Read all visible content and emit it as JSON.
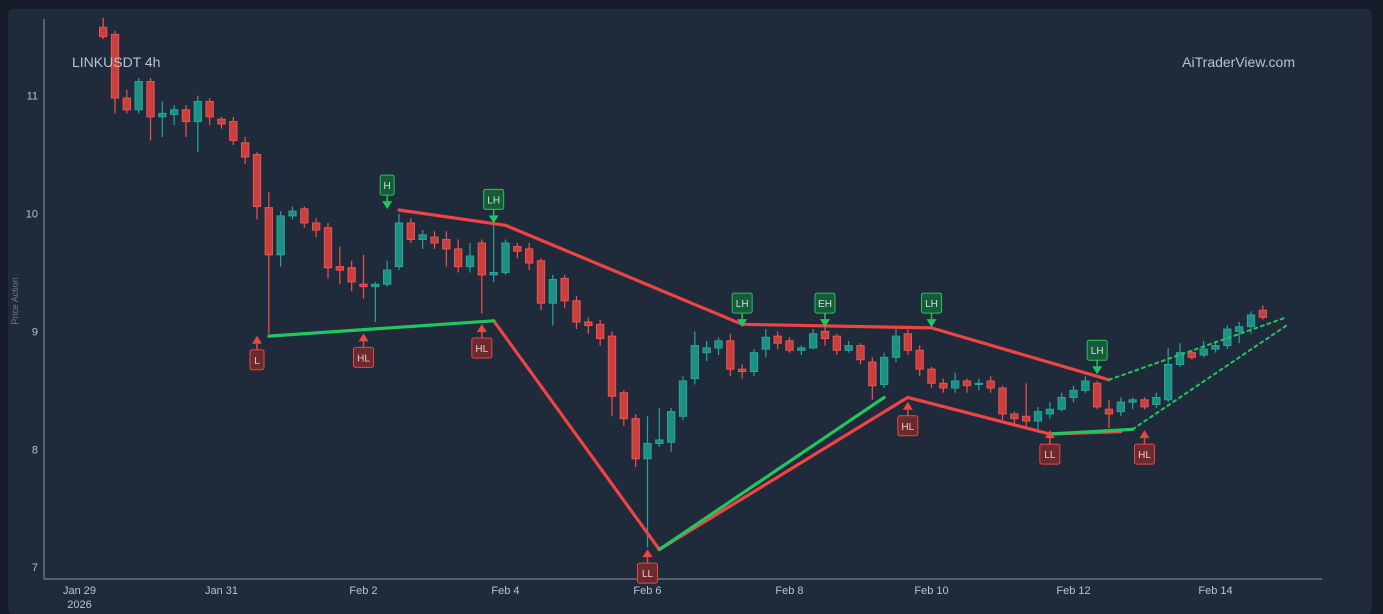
{
  "header": {
    "symbol": "LINKUSDT 4h",
    "watermark": "AiTraderView.com"
  },
  "colors": {
    "up": "#26a69a",
    "down": "#ef5350",
    "downline": "#ef4444",
    "upline": "#22c55e",
    "axis": "#8a96a6"
  },
  "chart_data": {
    "type": "candlestick",
    "title": "LINKUSDT 4h",
    "ylabel": "Price Action",
    "ylim": [
      6.9,
      11.65
    ],
    "yticks": [
      7,
      8,
      9,
      10,
      11
    ],
    "xlim": [
      "2026-01-28T12:00",
      "2026-02-15T12:00"
    ],
    "xticks": [
      {
        "t": "2026-01-29T00:00",
        "label": "Jan 29",
        "sub": "2026"
      },
      {
        "t": "2026-01-31T00:00",
        "label": "Jan 31"
      },
      {
        "t": "2026-02-02T00:00",
        "label": "Feb 2"
      },
      {
        "t": "2026-02-04T00:00",
        "label": "Feb 4"
      },
      {
        "t": "2026-02-06T00:00",
        "label": "Feb 6"
      },
      {
        "t": "2026-02-08T00:00",
        "label": "Feb 8"
      },
      {
        "t": "2026-02-10T00:00",
        "label": "Feb 10"
      },
      {
        "t": "2026-02-12T00:00",
        "label": "Feb 12"
      },
      {
        "t": "2026-02-14T00:00",
        "label": "Feb 14"
      }
    ],
    "grid": false,
    "candles_start": "2026-01-29T08:00",
    "candle_hours": 4,
    "candles": [
      [
        11.58,
        11.5,
        11.66,
        11.48
      ],
      [
        11.52,
        10.98,
        11.55,
        10.85
      ],
      [
        10.98,
        10.88,
        11.05,
        10.85
      ],
      [
        10.88,
        11.12,
        11.15,
        10.85
      ],
      [
        11.12,
        10.82,
        11.15,
        10.62
      ],
      [
        10.82,
        10.85,
        10.95,
        10.65
      ],
      [
        10.84,
        10.88,
        10.92,
        10.75
      ],
      [
        10.88,
        10.78,
        10.92,
        10.65
      ],
      [
        10.78,
        10.95,
        11.0,
        10.52
      ],
      [
        10.95,
        10.82,
        10.98,
        10.75
      ],
      [
        10.8,
        10.76,
        10.82,
        10.72
      ],
      [
        10.78,
        10.62,
        10.82,
        10.58
      ],
      [
        10.6,
        10.48,
        10.65,
        10.42
      ],
      [
        10.5,
        10.06,
        10.52,
        9.95
      ],
      [
        10.05,
        9.65,
        10.18,
        8.98
      ],
      [
        9.65,
        9.98,
        10.02,
        9.55
      ],
      [
        9.98,
        10.02,
        10.06,
        9.95
      ],
      [
        10.04,
        9.92,
        10.06,
        9.88
      ],
      [
        9.92,
        9.86,
        9.96,
        9.8
      ],
      [
        9.88,
        9.54,
        9.92,
        9.45
      ],
      [
        9.55,
        9.52,
        9.72,
        9.4
      ],
      [
        9.54,
        9.42,
        9.6,
        9.34
      ],
      [
        9.4,
        9.38,
        9.65,
        9.28
      ],
      [
        9.38,
        9.4,
        9.42,
        9.08
      ],
      [
        9.4,
        9.52,
        9.6,
        9.38
      ],
      [
        9.55,
        9.92,
        10.0,
        9.52
      ],
      [
        9.92,
        9.78,
        9.96,
        9.75
      ],
      [
        9.78,
        9.82,
        9.86,
        9.7
      ],
      [
        9.8,
        9.75,
        9.85,
        9.7
      ],
      [
        9.78,
        9.7,
        9.85,
        9.55
      ],
      [
        9.7,
        9.55,
        9.78,
        9.5
      ],
      [
        9.55,
        9.64,
        9.75,
        9.5
      ],
      [
        9.75,
        9.48,
        9.78,
        9.15
      ],
      [
        9.48,
        9.5,
        9.92,
        9.42
      ],
      [
        9.5,
        9.75,
        9.78,
        9.48
      ],
      [
        9.72,
        9.68,
        9.75,
        9.62
      ],
      [
        9.7,
        9.58,
        9.75,
        9.52
      ],
      [
        9.6,
        9.24,
        9.62,
        9.18
      ],
      [
        9.24,
        9.44,
        9.48,
        9.05
      ],
      [
        9.45,
        9.26,
        9.48,
        9.2
      ],
      [
        9.26,
        9.08,
        9.3,
        9.02
      ],
      [
        9.08,
        9.05,
        9.12,
        8.98
      ],
      [
        9.06,
        8.94,
        9.1,
        8.88
      ],
      [
        8.96,
        8.45,
        9.0,
        8.28
      ],
      [
        8.48,
        8.26,
        8.5,
        8.2
      ],
      [
        8.26,
        7.92,
        8.3,
        7.85
      ],
      [
        7.92,
        8.05,
        8.28,
        7.17
      ],
      [
        8.05,
        8.08,
        8.35,
        8.02
      ],
      [
        8.06,
        8.32,
        8.35,
        7.98
      ],
      [
        8.28,
        8.58,
        8.62,
        8.25
      ],
      [
        8.6,
        8.88,
        9.0,
        8.55
      ],
      [
        8.82,
        8.86,
        8.92,
        8.75
      ],
      [
        8.86,
        8.92,
        8.95,
        8.8
      ],
      [
        8.92,
        8.68,
        8.98,
        8.62
      ],
      [
        8.68,
        8.66,
        8.72,
        8.6
      ],
      [
        8.66,
        8.82,
        8.85,
        8.62
      ],
      [
        8.85,
        8.95,
        9.02,
        8.78
      ],
      [
        8.96,
        8.9,
        9.0,
        8.85
      ],
      [
        8.92,
        8.84,
        8.95,
        8.82
      ],
      [
        8.84,
        8.86,
        8.88,
        8.8
      ],
      [
        8.86,
        8.98,
        9.02,
        8.85
      ],
      [
        9.0,
        8.94,
        9.04,
        8.88
      ],
      [
        8.96,
        8.84,
        8.98,
        8.8
      ],
      [
        8.84,
        8.88,
        8.92,
        8.82
      ],
      [
        8.88,
        8.76,
        8.9,
        8.72
      ],
      [
        8.74,
        8.54,
        8.78,
        8.42
      ],
      [
        8.55,
        8.78,
        8.82,
        8.52
      ],
      [
        8.78,
        8.96,
        9.02,
        8.74
      ],
      [
        8.98,
        8.84,
        9.02,
        8.8
      ],
      [
        8.84,
        8.68,
        8.88,
        8.62
      ],
      [
        8.68,
        8.56,
        8.7,
        8.52
      ],
      [
        8.56,
        8.52,
        8.6,
        8.48
      ],
      [
        8.52,
        8.58,
        8.65,
        8.48
      ],
      [
        8.58,
        8.54,
        8.6,
        8.48
      ],
      [
        8.55,
        8.56,
        8.6,
        8.5
      ],
      [
        8.58,
        8.52,
        8.62,
        8.48
      ],
      [
        8.52,
        8.3,
        8.54,
        8.25
      ],
      [
        8.3,
        8.26,
        8.32,
        8.2
      ],
      [
        8.28,
        8.24,
        8.56,
        8.18
      ],
      [
        8.24,
        8.32,
        8.36,
        8.14
      ],
      [
        8.3,
        8.34,
        8.4,
        8.26
      ],
      [
        8.34,
        8.44,
        8.48,
        8.32
      ],
      [
        8.44,
        8.5,
        8.54,
        8.4
      ],
      [
        8.5,
        8.58,
        8.62,
        8.48
      ],
      [
        8.56,
        8.36,
        8.58,
        8.34
      ],
      [
        8.34,
        8.3,
        8.42,
        8.18
      ],
      [
        8.32,
        8.4,
        8.44,
        8.28
      ],
      [
        8.4,
        8.42,
        8.44,
        8.34
      ],
      [
        8.42,
        8.36,
        8.44,
        8.34
      ],
      [
        8.38,
        8.44,
        8.48,
        8.35
      ],
      [
        8.42,
        8.72,
        8.86,
        8.4
      ],
      [
        8.72,
        8.82,
        8.9,
        8.7
      ],
      [
        8.82,
        8.78,
        8.84,
        8.76
      ],
      [
        8.8,
        8.85,
        8.92,
        8.78
      ],
      [
        8.85,
        8.88,
        8.92,
        8.82
      ],
      [
        8.88,
        9.02,
        9.05,
        8.85
      ],
      [
        9.0,
        9.04,
        9.08,
        8.9
      ],
      [
        9.04,
        9.14,
        9.17,
        8.98
      ],
      [
        9.18,
        9.12,
        9.22,
        9.1
      ]
    ],
    "lines": [
      {
        "kind": "down",
        "dash": false,
        "points": [
          [
            "2026-02-02T12:00",
            10.03
          ],
          [
            "2026-02-04T00:00",
            9.9
          ],
          [
            "2026-02-07T08:00",
            9.06
          ],
          [
            "2026-02-10T00:00",
            9.03
          ],
          [
            "2026-02-12T12:00",
            8.59
          ]
        ]
      },
      {
        "kind": "down",
        "dash": false,
        "points": [
          [
            "2026-02-03T20:00",
            9.09
          ],
          [
            "2026-02-06T04:00",
            7.15
          ],
          [
            "2026-02-09T16:00",
            8.44
          ],
          [
            "2026-02-11T16:00",
            8.13
          ],
          [
            "2026-02-12T16:00",
            8.15
          ]
        ]
      },
      {
        "kind": "up",
        "dash": false,
        "points": [
          [
            "2026-01-31T16:00",
            8.96
          ],
          [
            "2026-02-03T20:00",
            9.09
          ]
        ]
      },
      {
        "kind": "up",
        "dash": false,
        "points": [
          [
            "2026-02-06T04:00",
            7.15
          ],
          [
            "2026-02-09T08:00",
            8.44
          ]
        ]
      },
      {
        "kind": "up",
        "dash": false,
        "points": [
          [
            "2026-02-11T16:00",
            8.13
          ],
          [
            "2026-02-12T20:00",
            8.17
          ]
        ]
      },
      {
        "kind": "up",
        "dash": true,
        "points": [
          [
            "2026-02-12T12:00",
            8.59
          ],
          [
            "2026-02-15T00:00",
            9.12
          ]
        ]
      },
      {
        "kind": "up",
        "dash": true,
        "points": [
          [
            "2026-02-12T20:00",
            8.17
          ],
          [
            "2026-02-15T00:00",
            9.05
          ]
        ]
      }
    ],
    "markers": [
      {
        "label": "L",
        "t": "2026-01-31T12:00",
        "price": 8.98,
        "pos": "below"
      },
      {
        "label": "HL",
        "t": "2026-02-01T24:00",
        "price": 9.0,
        "pos": "below"
      },
      {
        "label": "H",
        "t": "2026-02-02T08:00",
        "price": 10.02,
        "pos": "above"
      },
      {
        "label": "HL",
        "t": "2026-02-03T16:00",
        "price": 9.08,
        "pos": "below"
      },
      {
        "label": "LH",
        "t": "2026-02-03T20:00",
        "price": 9.9,
        "pos": "above"
      },
      {
        "label": "LL",
        "t": "2026-02-06T00:00",
        "price": 7.17,
        "pos": "below"
      },
      {
        "label": "LH",
        "t": "2026-02-07T08:00",
        "price": 9.02,
        "pos": "above"
      },
      {
        "label": "EH",
        "t": "2026-02-08T12:00",
        "price": 9.02,
        "pos": "above"
      },
      {
        "label": "HL",
        "t": "2026-02-09T16:00",
        "price": 8.42,
        "pos": "below"
      },
      {
        "label": "LH",
        "t": "2026-02-09T24:00",
        "price": 9.02,
        "pos": "above"
      },
      {
        "label": "LL",
        "t": "2026-02-11T16:00",
        "price": 8.18,
        "pos": "below"
      },
      {
        "label": "LH",
        "t": "2026-02-12T08:00",
        "price": 8.62,
        "pos": "above"
      },
      {
        "label": "HL",
        "t": "2026-02-12T24:00",
        "price": 8.18,
        "pos": "below"
      }
    ]
  }
}
